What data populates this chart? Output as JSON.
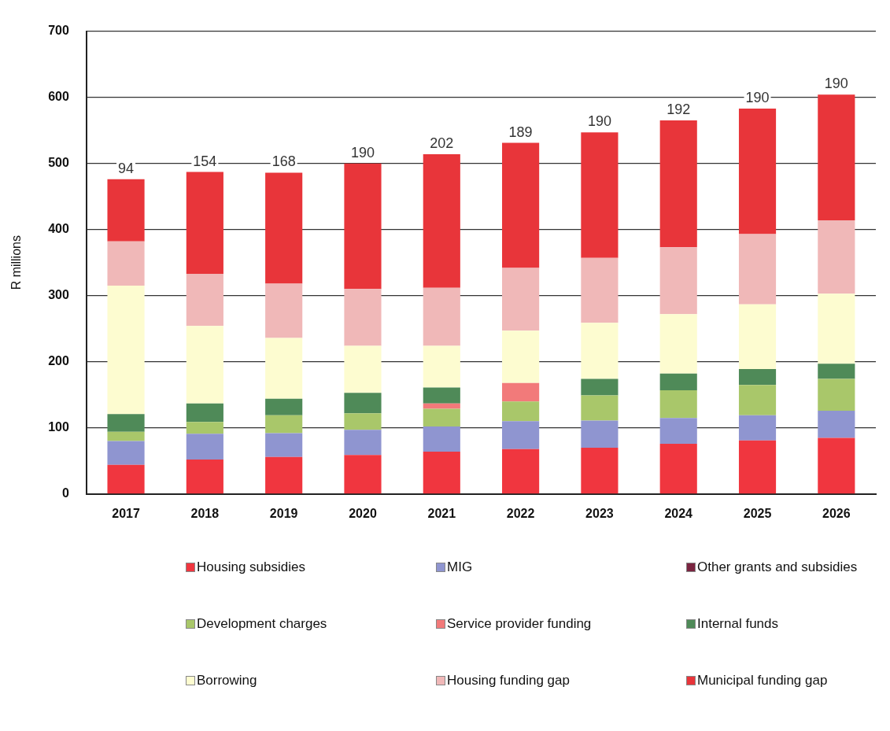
{
  "chart_data": {
    "type": "bar",
    "stacked": true,
    "ylabel": "R millions",
    "categories": [
      "2017",
      "2018",
      "2019",
      "2020",
      "2021",
      "2022",
      "2023",
      "2024",
      "2025",
      "2026"
    ],
    "series": [
      {
        "name": "Housing subsidies",
        "color": "#f0363f",
        "values": [
          44,
          52,
          56,
          59,
          64,
          68,
          70,
          76,
          81,
          85
        ]
      },
      {
        "name": "MIG",
        "color": "#8f95d0",
        "values": [
          36,
          39,
          36,
          38,
          38,
          42,
          41,
          39,
          38,
          41
        ]
      },
      {
        "name": "Other grants and subsidies",
        "color": "#7a2440",
        "values": [
          0,
          0,
          0,
          0,
          0,
          0,
          0,
          0,
          0,
          0
        ]
      },
      {
        "name": "Development charges",
        "color": "#a9c76a",
        "values": [
          14,
          18,
          27,
          25,
          27,
          30,
          38,
          42,
          46,
          48
        ]
      },
      {
        "name": "Service provider funding",
        "color": "#f27a7a",
        "values": [
          0,
          0,
          0,
          0,
          8,
          28,
          0,
          0,
          0,
          0
        ]
      },
      {
        "name": "Internal funds",
        "color": "#4f8a58",
        "values": [
          27,
          28,
          25,
          31,
          24,
          0,
          25,
          25,
          24,
          23
        ]
      },
      {
        "name": "Borrowing",
        "color": "#fdfcd0",
        "values": [
          194,
          117,
          92,
          71,
          63,
          79,
          85,
          90,
          98,
          106
        ]
      },
      {
        "name": "Housing funding gap",
        "color": "#f0b8b8",
        "values": [
          67,
          79,
          82,
          86,
          88,
          95,
          98,
          101,
          106,
          111
        ]
      },
      {
        "name": "Municipal funding gap",
        "color": "#e8353a",
        "values": [
          94,
          154,
          168,
          190,
          202,
          189,
          190,
          192,
          190,
          190
        ],
        "value_labels": [
          "94",
          "154",
          "168",
          "190",
          "202",
          "189",
          "190",
          "192",
          "190",
          "190"
        ]
      }
    ],
    "ylim": [
      0,
      700
    ],
    "yticks": [
      0,
      100,
      200,
      300,
      400,
      500,
      600,
      700
    ],
    "grid": "y",
    "legend": "bottom"
  }
}
